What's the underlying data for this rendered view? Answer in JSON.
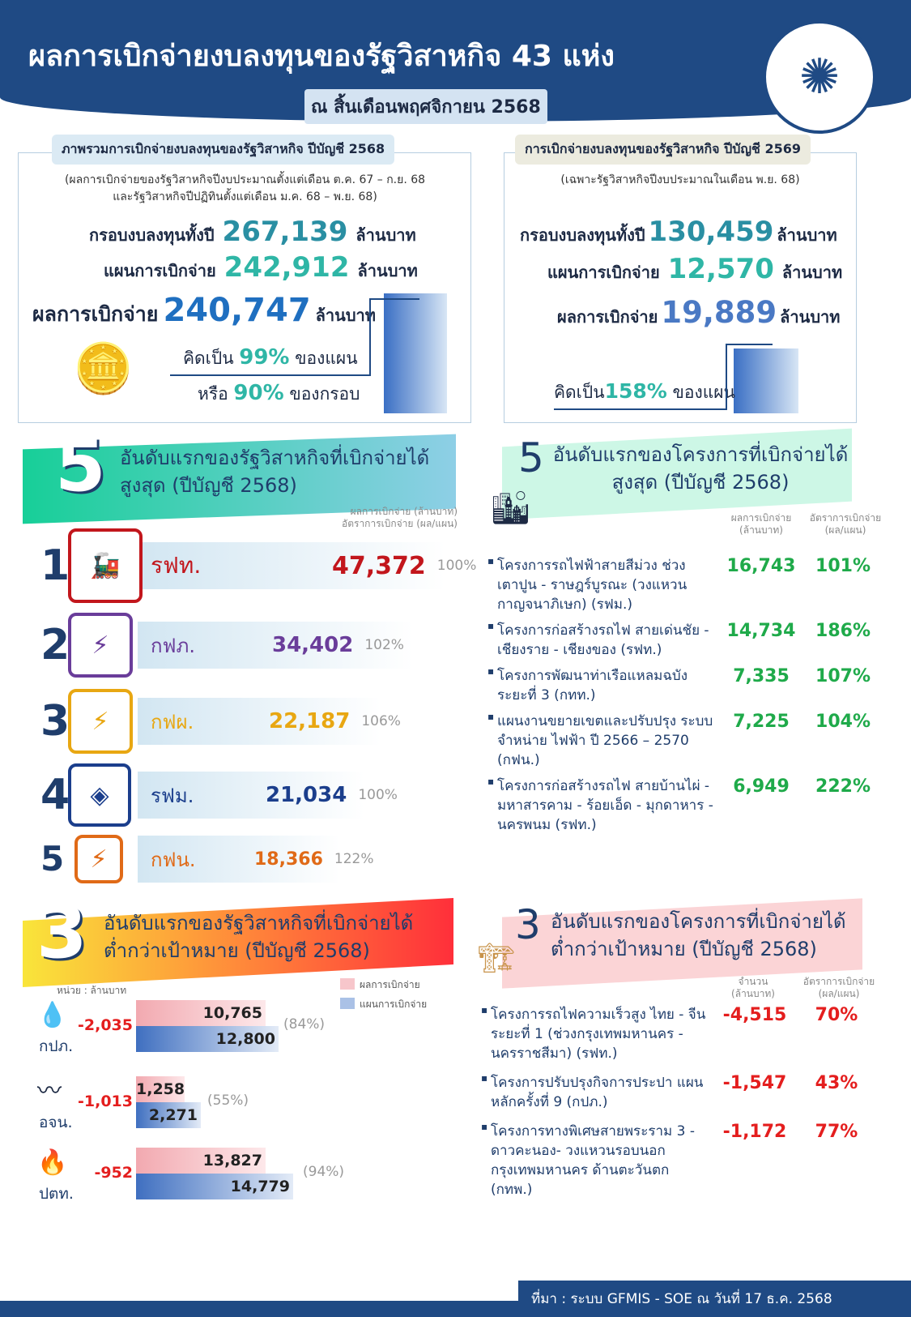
{
  "header": {
    "title": "ผลการเบิกจ่ายงบลงทุนของรัฐวิสาหกิจ 43 แห่ง",
    "subtitle": "ณ สิ้นเดือนพฤศจิกายน 2568"
  },
  "overview_2568": {
    "title": "ภาพรวมการเบิกจ่ายงบลงทุนของรัฐวิสาหกิจ ปีบัญชี 2568",
    "note1": "(ผลการเบิกจ่ายของรัฐวิสาหกิจปีงบประมาณตั้งแต่เดือน ต.ค. 67 – ก.ย. 68",
    "note2": "และรัฐวิสาหกิจปีปฏิทินตั้งแต่เดือน ม.ค. 68 – พ.ย. 68)",
    "budget_label": "กรอบงบลงทุนทั้งปี",
    "budget": "267,139",
    "plan_label": "แผนการเบิกจ่าย",
    "plan": "242,912",
    "result_label": "ผลการเบิกจ่าย",
    "result": "240,747",
    "unit": "ล้านบาท",
    "pct_plan_pre": "คิดเป็น",
    "pct_plan": "99%",
    "pct_plan_post": "ของแผน",
    "pct_frame_pre": "หรือ",
    "pct_frame": "90%",
    "pct_frame_post": "ของกรอบ"
  },
  "overview_2569": {
    "title": "การเบิกจ่ายงบลงทุนของรัฐวิสาหกิจ ปีบัญชี 2569",
    "note": "(เฉพาะรัฐวิสาหกิจปีงบประมาณในเดือน พ.ย. 68)",
    "budget_label": "กรอบงบลงทุนทั้งปี",
    "budget": "130,459",
    "plan_label": "แผนการเบิกจ่าย",
    "plan": "12,570",
    "result_label": "ผลการเบิกจ่าย",
    "result": "19,889",
    "unit": "ล้านบาท",
    "pct_pre": "คิดเป็น",
    "pct": "158%",
    "pct_post": "ของแผน"
  },
  "top5_soe": {
    "num": "5",
    "line1": "อันดับแรกของรัฐวิสาหกิจที่เบิกจ่ายได้",
    "line2": "สูงสุด (ปีบัญชี 2568)",
    "col1": "ผลการเบิกจ่าย (ล้านบาท)",
    "col2": "อัตราการเบิกจ่าย (ผล/แผน)",
    "items": [
      {
        "rank": "1",
        "name": "รฟท.",
        "value": "47,372",
        "pct": "100%",
        "color": "#c2161c"
      },
      {
        "rank": "2",
        "name": "กฟภ.",
        "value": "34,402",
        "pct": "102%",
        "color": "#6a3d9a"
      },
      {
        "rank": "3",
        "name": "กฟผ.",
        "value": "22,187",
        "pct": "106%",
        "color": "#e8a712"
      },
      {
        "rank": "4",
        "name": "รฟม.",
        "value": "21,034",
        "pct": "100%",
        "color": "#1b3e8c"
      },
      {
        "rank": "5",
        "name": "กฟน.",
        "value": "18,366",
        "pct": "122%",
        "color": "#e06a17"
      }
    ]
  },
  "top5_projects": {
    "num": "5",
    "line1": "อันดับแรกของโครงการที่เบิกจ่ายได้",
    "line2": "สูงสุด (ปีบัญชี 2568)",
    "col1a": "ผลการเบิกจ่าย",
    "col1b": "(ล้านบาท)",
    "col2a": "อัตราการเบิกจ่าย",
    "col2b": "(ผล/แผน)",
    "items": [
      {
        "name": "โครงการรถไฟฟ้าสายสีม่วง ช่วงเตาปูน - ราษฎร์บูรณะ (วงแหวนกาญจนาภิเษก) (รฟม.)",
        "value": "16,743",
        "pct": "101%"
      },
      {
        "name": "โครงการก่อสร้างรถไฟ สายเด่นชัย - เชียงราย - เชียงของ (รฟท.)",
        "value": "14,734",
        "pct": "186%"
      },
      {
        "name": "โครงการพัฒนาท่าเรือแหลมฉบัง ระยะที่ 3 (กทท.)",
        "value": "7,335",
        "pct": "107%"
      },
      {
        "name": "แผนงานขยายเขตและปรับปรุง ระบบจำหน่าย ไฟฟ้า ปี 2566 – 2570 (กฟน.)",
        "value": "7,225",
        "pct": "104%"
      },
      {
        "name": "โครงการก่อสร้างรถไฟ สายบ้านไผ่ - มหาสารคาม - ร้อยเอ็ด - มุกดาหาร - นครพนม (รฟท.)",
        "value": "6,949",
        "pct": "222%"
      }
    ]
  },
  "bottom3_soe": {
    "num": "3",
    "line1": "อันดับแรกของรัฐวิสาหกิจที่เบิกจ่ายได้",
    "line2": "ต่ำกว่าเป้าหมาย (ปีบัญชี 2568)",
    "unit_note": "หน่วย : ล้านบาท",
    "legend_result": "ผลการเบิกจ่าย",
    "legend_plan": "แผนการเบิกจ่าย",
    "items": [
      {
        "name": "กปภ.",
        "diff": "-2,035",
        "result": "10,765",
        "plan": "12,800",
        "pct": "(84%)"
      },
      {
        "name": "อจน.",
        "diff": "-1,013",
        "result": "1,258",
        "plan": "2,271",
        "pct": "(55%)"
      },
      {
        "name": "ปตท.",
        "diff": "-952",
        "result": "13,827",
        "plan": "14,779",
        "pct": "(94%)"
      }
    ]
  },
  "bottom3_projects": {
    "num": "3",
    "line1": "อันดับแรกของโครงการที่เบิกจ่ายได้",
    "line2": "ต่ำกว่าเป้าหมาย (ปีบัญชี 2568)",
    "col1a": "จำนวน",
    "col1b": "(ล้านบาท)",
    "col2a": "อัตราการเบิกจ่าย",
    "col2b": "(ผล/แผน)",
    "items": [
      {
        "name": "โครงการรถไฟความเร็วสูง ไทย - จีน ระยะที่ 1 (ช่วงกรุงเทพมหานคร - นครราชสีมา) (รฟท.)",
        "value": "-4,515",
        "pct": "70%"
      },
      {
        "name": "โครงการปรับปรุงกิจการประปา แผนหลักครั้งที่ 9 (กปภ.)",
        "value": "-1,547",
        "pct": "43%"
      },
      {
        "name": "โครงการทางพิเศษสายพระราม 3 - ดาวคะนอง- วงแหวนรอบนอก กรุงเทพมหานคร ด้านตะวันตก (กทพ.)",
        "value": "-1,172",
        "pct": "77%"
      }
    ]
  },
  "footer": {
    "source": "ที่มา : ระบบ GFMIS - SOE ณ วันที่ 17 ธ.ค. 2568"
  }
}
